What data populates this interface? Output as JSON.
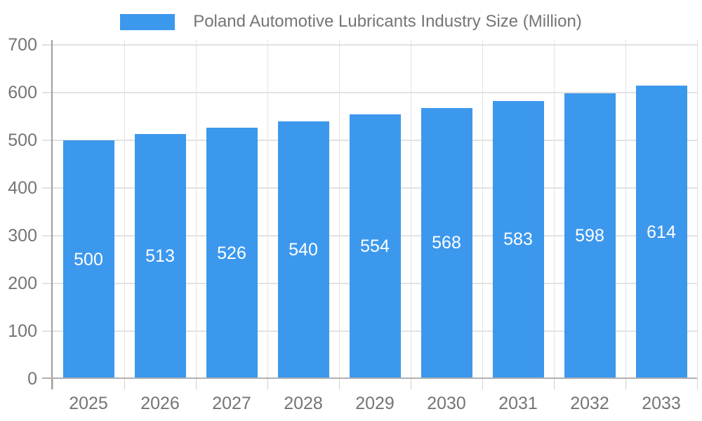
{
  "legend": {
    "label": "Poland Automotive Lubricants Industry Size (Million)",
    "swatch_color": "#3c98ed"
  },
  "chart_data": {
    "type": "bar",
    "title": "Poland Automotive Lubricants Industry Size (Million)",
    "categories": [
      "2025",
      "2026",
      "2027",
      "2028",
      "2029",
      "2030",
      "2031",
      "2032",
      "2033"
    ],
    "values": [
      500,
      513,
      526,
      540,
      554,
      568,
      583,
      598,
      614
    ],
    "xlabel": "",
    "ylabel": "",
    "ylim": [
      0,
      700
    ],
    "ytick_step": 100,
    "yticks": [
      0,
      100,
      200,
      300,
      400,
      500,
      600,
      700
    ],
    "grid": true,
    "legend_position": "top",
    "value_labels": "inside-center",
    "colors": {
      "bar": "#3c98ed",
      "bar_label": "#ffffff",
      "axis_text": "#757575",
      "gridline": "#e2e2e2",
      "axis_line": "#9e9e9e",
      "baseline": "#b0b0b0",
      "bottom_tick": "#cfcfcf",
      "background": "#ffffff"
    }
  }
}
